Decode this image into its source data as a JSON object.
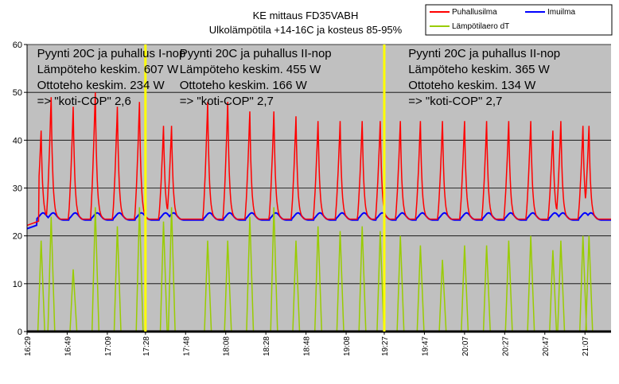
{
  "chart_data": {
    "type": "line",
    "title": "KE mittaus FD35VABH",
    "subtitle": "Ulkolämpötila +14-16C ja kosteus 85-95%",
    "xlabel": "",
    "ylabel": "",
    "ylim": [
      0,
      60
    ],
    "yticks": [
      0,
      10,
      20,
      30,
      40,
      50,
      60
    ],
    "xlim": [
      "16:29",
      "21:20"
    ],
    "xticks": [
      "16:29",
      "16:49",
      "17:09",
      "17:28",
      "17:48",
      "18:08",
      "18:28",
      "18:48",
      "19:08",
      "19:27",
      "19:47",
      "20:07",
      "20:27",
      "20:47",
      "21:07"
    ],
    "grid": "horizontal",
    "legend_position": "top-right",
    "colors": {
      "plot_background": "#c0c0c0",
      "page_background": "#ffffff",
      "axis_line": "#000000",
      "grid_line": "#000000",
      "marker_line": "#ffff00",
      "baseline": "#000000"
    },
    "series": [
      {
        "name": "Puhallusilma",
        "color": "#ff0000",
        "baseline": 23.5,
        "peaks": [
          {
            "time": "16:36",
            "value": 42
          },
          {
            "time": "16:41",
            "value": 49
          },
          {
            "time": "16:52",
            "value": 47
          },
          {
            "time": "17:03",
            "value": 50
          },
          {
            "time": "17:14",
            "value": 47
          },
          {
            "time": "17:25",
            "value": 48
          },
          {
            "time": "17:37",
            "value": 43
          },
          {
            "time": "17:41",
            "value": 43
          },
          {
            "time": "17:59",
            "value": 48
          },
          {
            "time": "18:09",
            "value": 48
          },
          {
            "time": "18:20",
            "value": 46
          },
          {
            "time": "18:32",
            "value": 46
          },
          {
            "time": "18:43",
            "value": 45
          },
          {
            "time": "18:54",
            "value": 44
          },
          {
            "time": "19:05",
            "value": 44
          },
          {
            "time": "19:16",
            "value": 44
          },
          {
            "time": "19:25",
            "value": 44
          },
          {
            "time": "19:35",
            "value": 44
          },
          {
            "time": "19:45",
            "value": 44
          },
          {
            "time": "19:56",
            "value": 44
          },
          {
            "time": "20:07",
            "value": 44
          },
          {
            "time": "20:18",
            "value": 44
          },
          {
            "time": "20:29",
            "value": 44
          },
          {
            "time": "20:40",
            "value": 44
          },
          {
            "time": "20:51",
            "value": 42
          },
          {
            "time": "20:55",
            "value": 44
          },
          {
            "time": "21:06",
            "value": 43
          },
          {
            "time": "21:09",
            "value": 43
          }
        ]
      },
      {
        "name": "Imuilma",
        "color": "#0000ff",
        "start_value": 21.5,
        "baseline": 23.3,
        "peak_value": 24.8
      },
      {
        "name": "Lämpötilaero dT",
        "color": "#99cc00",
        "baseline": 0,
        "peak_values": [
          19,
          24,
          13,
          26,
          22,
          26,
          23,
          26,
          19,
          19,
          24,
          26,
          19,
          22,
          21,
          22,
          21,
          20,
          18,
          15,
          18,
          18,
          19,
          20,
          17,
          19,
          20,
          20
        ]
      }
    ],
    "markers": [
      "17:28",
      "19:27"
    ],
    "annotations": [
      {
        "lines": [
          "Pyynti 20C ja puhallus I-nop",
          "Lämpöteho keskim. 607 W",
          "Ottoteho keskim. 234 W",
          "=> \"koti-COP\" 2,6"
        ],
        "anchor_time": "16:34"
      },
      {
        "lines": [
          "Pyynti 20C ja puhallus II-nop",
          "Lämpöteho keskim. 455 W",
          "Ottoteho keskim. 166 W",
          "=> \"koti-COP\" 2,7"
        ],
        "anchor_time": "17:45"
      },
      {
        "lines": [
          "Pyynti 20C ja puhallus II-nop",
          "Lämpöteho keskim. 365 W",
          "Ottoteho keskim. 134 W",
          "=> \"koti-COP\" 2,7"
        ],
        "anchor_time": "19:39"
      }
    ]
  }
}
